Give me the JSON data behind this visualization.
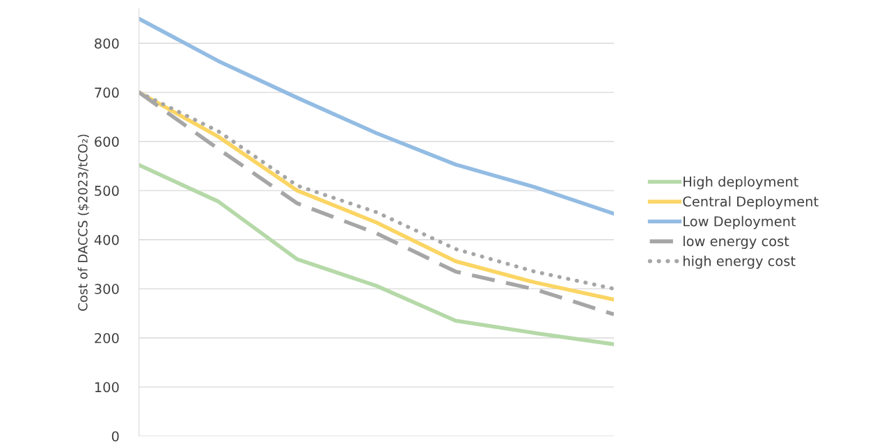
{
  "chart_data": {
    "type": "line",
    "ylabel": "Cost of DACCS ($2023/tCO₂)",
    "categories": [
      null,
      null,
      null,
      null,
      null,
      null,
      null
    ],
    "series": [
      {
        "name": "High deployment",
        "color": "#b5d9a8",
        "values": [
          552,
          478,
          360,
          306,
          235,
          210,
          187
        ]
      },
      {
        "name": "Central Deployment",
        "color": "#fbd564",
        "values": [
          700,
          610,
          500,
          435,
          356,
          313,
          278
        ]
      },
      {
        "name": "Low Deployment",
        "color": "#93bce3",
        "values": [
          850,
          764,
          689,
          617,
          553,
          507,
          453
        ]
      },
      {
        "name": "low energy cost",
        "color": "#a6a6a6",
        "line_style": "dashed",
        "values": [
          700,
          585,
          474,
          413,
          335,
          299,
          248
        ]
      },
      {
        "name": "high energy cost",
        "color": "#a6a6a6",
        "line_style": "dotted",
        "values": [
          700,
          621,
          510,
          456,
          381,
          335,
          300
        ]
      }
    ],
    "ylim": [
      0,
      870
    ],
    "yticks": [
      0,
      100,
      200,
      300,
      400,
      500,
      600,
      700,
      800
    ],
    "grid": "y",
    "legend": "right",
    "marker": "none",
    "line_style": "solid"
  }
}
